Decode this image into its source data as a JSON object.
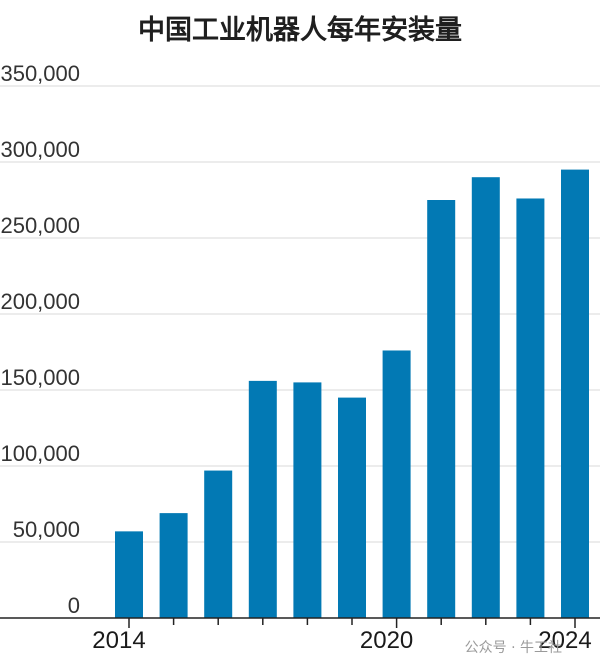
{
  "chart_data": {
    "type": "bar",
    "title": "中国工业机器人每年安装量",
    "xlabel": "",
    "ylabel": "",
    "categories": [
      "2014",
      "2015",
      "2016",
      "2017",
      "2018",
      "2019",
      "2020",
      "2021",
      "2022",
      "2023",
      "2024"
    ],
    "values": [
      57000,
      69000,
      97000,
      156000,
      155000,
      145000,
      176000,
      275000,
      290000,
      276000,
      295000
    ],
    "ylim": [
      0,
      350000
    ],
    "yticks": [
      0,
      50000,
      100000,
      150000,
      200000,
      250000,
      300000,
      350000
    ],
    "ytick_labels": [
      "0",
      "50,000",
      "100,000",
      "150,000",
      "200,000",
      "250,000",
      "300,000",
      "350,000"
    ],
    "xtick_labels": [
      {
        "category": "2014",
        "text": "2014"
      },
      {
        "category": "2020",
        "text": "2020"
      },
      {
        "category": "2024",
        "text": "2024"
      }
    ],
    "bar_color": "#0279b4",
    "grid": true
  },
  "watermark": "公众号 · 牛工社"
}
